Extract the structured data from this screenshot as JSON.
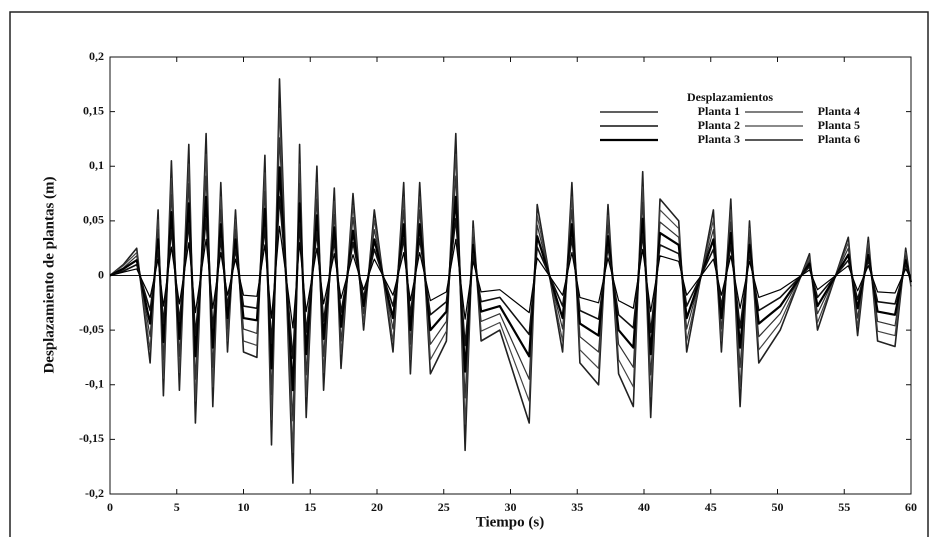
{
  "chart_data": {
    "type": "line",
    "xlabel": "Tiempo (s)",
    "ylabel": "Desplazamiento de plantas (m)",
    "legend_title": "Desplazamientos",
    "legend": "upper right",
    "xlim": [
      0,
      60
    ],
    "ylim": [
      -0.2,
      0.2
    ],
    "xticks": [
      0,
      5,
      10,
      15,
      20,
      25,
      30,
      35,
      40,
      45,
      50,
      55,
      60
    ],
    "yticks": [
      {
        "value": -0.2,
        "label": "-0,2"
      },
      {
        "value": -0.15,
        "label": "-0,15"
      },
      {
        "value": -0.1,
        "label": "-0,1"
      },
      {
        "value": -0.05,
        "label": "-0,05"
      },
      0,
      {
        "value": 0.05,
        "label": "0,05"
      },
      {
        "value": 0.1,
        "label": "0,1"
      },
      {
        "value": 0.15,
        "label": "0,15"
      },
      {
        "value": 0.2,
        "label": "0,2"
      }
    ],
    "x": [
      0,
      1,
      2,
      3,
      3.6,
      4,
      4.6,
      5.2,
      5.9,
      6.4,
      7.2,
      7.7,
      8.3,
      8.8,
      9.4,
      10,
      11,
      11.6,
      12.1,
      12.7,
      13.7,
      14.2,
      14.7,
      15.5,
      16,
      16.8,
      17.3,
      18.2,
      19,
      19.8,
      21.2,
      22,
      22.5,
      23.2,
      24,
      25.2,
      25.9,
      26.6,
      27.2,
      27.8,
      29.2,
      31.4,
      32,
      33.9,
      34.6,
      35.2,
      36.6,
      37.3,
      38.1,
      39.2,
      39.9,
      40.5,
      41.2,
      42.6,
      43.2,
      45.2,
      45.8,
      46.5,
      47.2,
      47.9,
      48.6,
      50.2,
      52.4,
      53,
      55.3,
      56,
      56.8,
      57.5,
      58.8,
      59.6,
      60
    ],
    "series": [
      {
        "name": "Planta 1",
        "color": "#000000",
        "values": [
          0,
          0.003,
          0.006,
          -0.02,
          0.015,
          -0.028,
          0.026,
          -0.026,
          0.03,
          -0.034,
          0.033,
          -0.03,
          0.021,
          -0.018,
          0.015,
          -0.018,
          -0.019,
          0.028,
          -0.039,
          0.045,
          -0.048,
          0.03,
          -0.033,
          0.025,
          -0.026,
          0.02,
          -0.021,
          0.019,
          -0.013,
          0.015,
          -0.018,
          0.021,
          -0.023,
          0.021,
          -0.023,
          -0.015,
          0.033,
          -0.04,
          0.013,
          -0.015,
          -0.013,
          -0.034,
          0.016,
          -0.018,
          0.021,
          -0.02,
          -0.025,
          0.016,
          -0.023,
          -0.03,
          0.024,
          -0.033,
          0.018,
          0.013,
          -0.018,
          0.015,
          -0.018,
          0.018,
          -0.03,
          0.013,
          -0.02,
          -0.013,
          0.005,
          -0.013,
          0.009,
          -0.014,
          0.009,
          -0.015,
          -0.016,
          0.006,
          -0.003
        ]
      },
      {
        "name": "Planta 2",
        "color": "#111111",
        "values": [
          0,
          0.004,
          0.01,
          -0.032,
          0.024,
          -0.044,
          0.042,
          -0.042,
          0.048,
          -0.054,
          0.052,
          -0.048,
          0.034,
          -0.028,
          0.024,
          -0.028,
          -0.03,
          0.044,
          -0.062,
          0.072,
          -0.076,
          0.048,
          -0.052,
          0.04,
          -0.042,
          0.032,
          -0.034,
          0.03,
          -0.02,
          0.024,
          -0.028,
          0.034,
          -0.036,
          0.034,
          -0.036,
          -0.024,
          0.052,
          -0.064,
          0.02,
          -0.024,
          -0.02,
          -0.054,
          0.026,
          -0.028,
          0.034,
          -0.032,
          -0.04,
          0.026,
          -0.036,
          -0.048,
          0.038,
          -0.052,
          0.028,
          0.02,
          -0.028,
          0.024,
          -0.028,
          0.028,
          -0.048,
          0.02,
          -0.032,
          -0.02,
          0.008,
          -0.02,
          0.014,
          -0.022,
          0.014,
          -0.024,
          -0.026,
          0.01,
          -0.004
        ]
      },
      {
        "name": "Planta 3",
        "color": "#000000",
        "values": [
          0,
          0.006,
          0.014,
          -0.044,
          0.033,
          -0.061,
          0.058,
          -0.058,
          0.066,
          -0.074,
          0.072,
          -0.066,
          0.047,
          -0.039,
          0.033,
          -0.039,
          -0.041,
          0.061,
          -0.085,
          0.099,
          -0.105,
          0.066,
          -0.072,
          0.055,
          -0.058,
          0.044,
          -0.047,
          0.041,
          -0.028,
          0.033,
          -0.039,
          0.047,
          -0.05,
          0.047,
          -0.05,
          -0.033,
          0.072,
          -0.088,
          0.028,
          -0.033,
          -0.028,
          -0.074,
          0.036,
          -0.039,
          0.047,
          -0.044,
          -0.055,
          0.036,
          -0.05,
          -0.066,
          0.052,
          -0.072,
          0.039,
          0.028,
          -0.039,
          0.033,
          -0.039,
          0.039,
          -0.066,
          0.028,
          -0.044,
          -0.028,
          0.011,
          -0.028,
          0.019,
          -0.03,
          0.019,
          -0.033,
          -0.036,
          0.014,
          -0.006
        ]
      },
      {
        "name": "Planta 4",
        "color": "#333333",
        "values": [
          0,
          0.007,
          0.018,
          -0.056,
          0.042,
          -0.077,
          0.074,
          -0.074,
          0.084,
          -0.095,
          0.091,
          -0.084,
          0.06,
          -0.049,
          0.042,
          -0.049,
          -0.053,
          0.077,
          -0.109,
          0.126,
          -0.133,
          0.084,
          -0.091,
          0.07,
          -0.074,
          0.056,
          -0.06,
          0.053,
          -0.035,
          0.042,
          -0.049,
          0.06,
          -0.063,
          0.06,
          -0.063,
          -0.042,
          0.091,
          -0.112,
          0.035,
          -0.042,
          -0.035,
          -0.095,
          0.046,
          -0.049,
          0.06,
          -0.056,
          -0.07,
          0.046,
          -0.063,
          -0.084,
          0.067,
          -0.091,
          0.049,
          0.035,
          -0.049,
          0.042,
          -0.049,
          0.049,
          -0.084,
          0.035,
          -0.056,
          -0.035,
          0.014,
          -0.035,
          0.025,
          -0.039,
          0.025,
          -0.042,
          -0.046,
          0.018,
          -0.007
        ]
      },
      {
        "name": "Planta 5",
        "color": "#444444",
        "values": [
          0,
          0.009,
          0.021,
          -0.068,
          0.051,
          -0.094,
          0.089,
          -0.089,
          0.102,
          -0.115,
          0.111,
          -0.102,
          0.072,
          -0.06,
          0.051,
          -0.06,
          -0.064,
          0.094,
          -0.132,
          0.153,
          -0.162,
          0.102,
          -0.111,
          0.085,
          -0.089,
          0.068,
          -0.072,
          0.064,
          -0.043,
          0.051,
          -0.06,
          0.072,
          -0.077,
          0.072,
          -0.077,
          -0.051,
          0.111,
          -0.136,
          0.043,
          -0.051,
          -0.043,
          -0.115,
          0.055,
          -0.06,
          0.072,
          -0.068,
          -0.085,
          0.055,
          -0.077,
          -0.102,
          0.081,
          -0.111,
          0.06,
          0.043,
          -0.06,
          0.051,
          -0.06,
          0.06,
          -0.102,
          0.043,
          -0.068,
          -0.043,
          0.017,
          -0.043,
          0.03,
          -0.047,
          0.03,
          -0.051,
          -0.055,
          0.021,
          -0.009
        ]
      },
      {
        "name": "Planta 6",
        "color": "#222222",
        "values": [
          0,
          0.01,
          0.025,
          -0.08,
          0.06,
          -0.11,
          0.105,
          -0.105,
          0.12,
          -0.135,
          0.13,
          -0.12,
          0.085,
          -0.07,
          0.06,
          -0.07,
          -0.075,
          0.11,
          -0.155,
          0.18,
          -0.19,
          0.12,
          -0.13,
          0.1,
          -0.105,
          0.08,
          -0.085,
          0.075,
          -0.05,
          0.06,
          -0.07,
          0.085,
          -0.09,
          0.085,
          -0.09,
          -0.06,
          0.13,
          -0.16,
          0.05,
          -0.06,
          -0.05,
          -0.135,
          0.065,
          -0.07,
          0.085,
          -0.08,
          -0.1,
          0.065,
          -0.09,
          -0.12,
          0.095,
          -0.13,
          0.07,
          0.05,
          -0.07,
          0.06,
          -0.07,
          0.07,
          -0.12,
          0.05,
          -0.08,
          -0.05,
          0.02,
          -0.05,
          0.035,
          -0.055,
          0.035,
          -0.06,
          -0.065,
          0.025,
          -0.01
        ]
      }
    ]
  }
}
